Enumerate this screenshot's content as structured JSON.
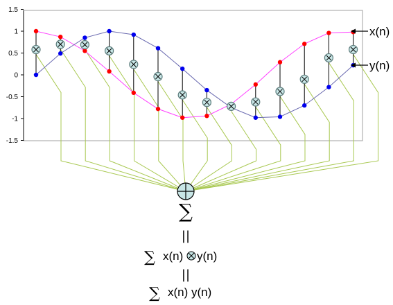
{
  "chart_data": {
    "type": "line",
    "ylim": [
      -1.5,
      1.5
    ],
    "y_ticks": [
      "1.5",
      "1",
      "0.5",
      "0",
      "-0.5",
      "-1",
      "-1.5"
    ],
    "grid": false,
    "colors": {
      "x": "#ff0000",
      "x_line": "#ff40ff",
      "y": "#0000ee",
      "y_line": "#6a6ab0",
      "product": "#5a7a7a",
      "product_fill": "#c8e6e6",
      "sum_wires": "#a8c850"
    },
    "series": [
      {
        "name": "x(n)",
        "values": [
          1.0,
          0.87,
          0.55,
          0.08,
          -0.41,
          -0.78,
          -0.98,
          -0.94,
          -0.67,
          -0.22,
          0.29,
          0.71,
          0.96,
          0.98
        ]
      },
      {
        "name": "y(n)",
        "values": [
          0.0,
          0.49,
          0.85,
          1.0,
          0.92,
          0.61,
          0.14,
          -0.35,
          -0.75,
          -0.98,
          -0.96,
          -0.7,
          -0.28,
          0.22
        ]
      }
    ],
    "products": [
      0.58,
      0.7,
      0.69,
      0.55,
      0.24,
      -0.04,
      -0.46,
      -0.63,
      -0.72,
      -0.62,
      -0.38,
      -0.1,
      0.39,
      0.58
    ]
  },
  "labels": {
    "x_series": "x(n)",
    "y_series": "y(n)"
  },
  "derivation": {
    "sum_symbol": "∑",
    "equals_1": "||",
    "line1_sigma": "∑",
    "line1_a": "x(n)",
    "line1_op": "⊗",
    "line1_b": "y(n)",
    "equals_2": "||",
    "line2_sigma": "∑",
    "line2_expr": "x(n) y(n)"
  }
}
